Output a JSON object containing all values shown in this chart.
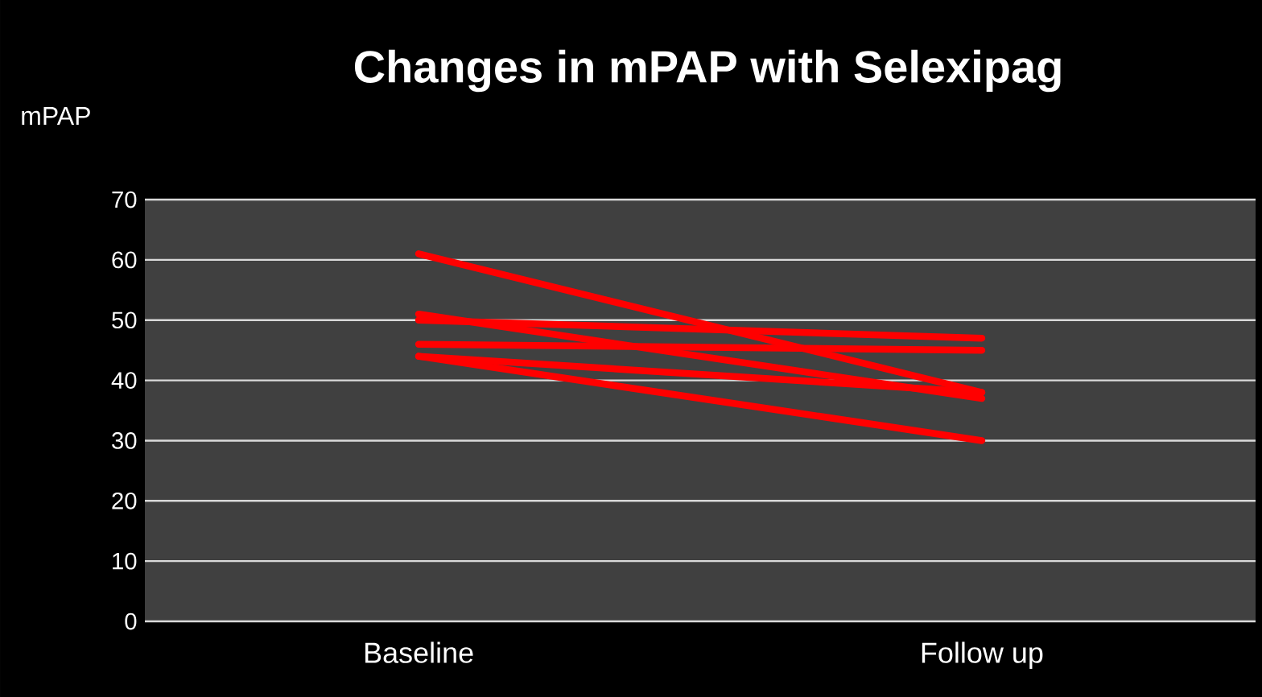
{
  "chart_data": {
    "type": "line",
    "title": "Changes in mPAP with Selexipag",
    "ylabel": "mPAP",
    "categories": [
      "Baseline",
      "Follow up"
    ],
    "series": [
      {
        "color": "#ff0000",
        "values": [
          61,
          38
        ]
      },
      {
        "color": "#ff0000",
        "values": [
          51,
          37
        ]
      },
      {
        "color": "#ff0000",
        "values": [
          50,
          47
        ]
      },
      {
        "color": "#ff0000",
        "values": [
          46,
          45
        ]
      },
      {
        "color": "#ff0000",
        "values": [
          44,
          38
        ]
      },
      {
        "color": "#ff0000",
        "values": [
          44,
          30
        ]
      }
    ],
    "ylim": [
      0,
      70
    ],
    "yticks": [
      0,
      10,
      20,
      30,
      40,
      50,
      60,
      70
    ],
    "grid": "y",
    "marker": "none",
    "line_style": "solid"
  }
}
